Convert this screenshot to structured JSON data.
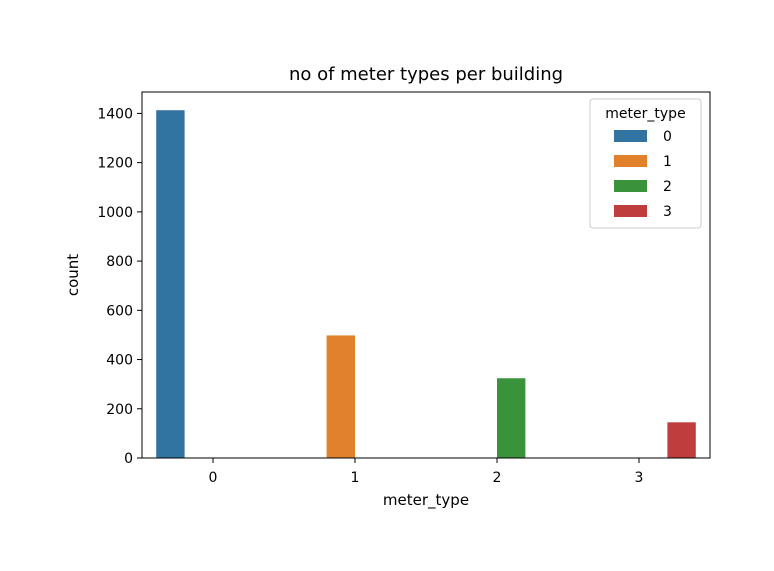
{
  "chart_data": {
    "type": "bar",
    "title": "no of meter types per building",
    "xlabel": "meter_type",
    "ylabel": "count",
    "categories": [
      "0",
      "1",
      "2",
      "3"
    ],
    "ylim": [
      0,
      1487
    ],
    "yticks": [
      0,
      200,
      400,
      600,
      800,
      1000,
      1200,
      1400
    ],
    "grid": false,
    "legend": {
      "title": "meter_type",
      "placement": "top-right"
    },
    "series": [
      {
        "name": "0",
        "color": "#3274a1",
        "values": [
          1413,
          0,
          0,
          0
        ]
      },
      {
        "name": "1",
        "color": "#e1812c",
        "values": [
          0,
          498,
          0,
          0
        ]
      },
      {
        "name": "2",
        "color": "#3a923a",
        "values": [
          0,
          0,
          324,
          0
        ]
      },
      {
        "name": "3",
        "color": "#c03d3e",
        "values": [
          0,
          0,
          0,
          145
        ]
      }
    ]
  }
}
